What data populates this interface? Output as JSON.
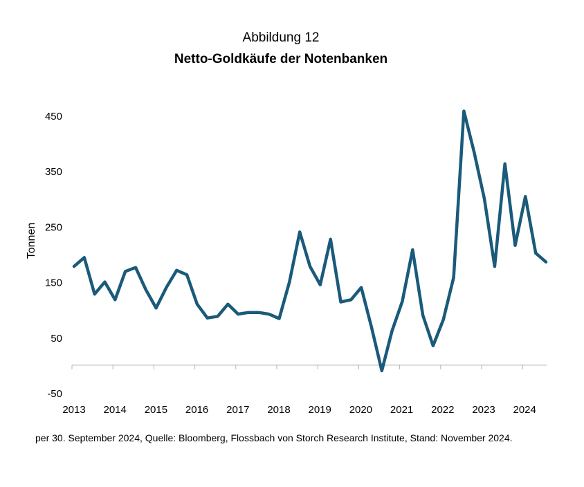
{
  "header": {
    "figure_number": "Abbildung 12",
    "title": "Netto-Goldkäufe der Notenbanken"
  },
  "footnote": "per 30. September 2024, Quelle: Bloomberg, Flossbach von Storch Research Institute, Stand: November 2024.",
  "colors": {
    "line": "#1a5a7a",
    "axis": "#b0b0b0"
  },
  "chart_data": {
    "type": "line",
    "title": "Netto-Goldkäufe der Notenbanken",
    "xlabel": "",
    "ylabel": "Tonnen",
    "ylim": [
      -50,
      450
    ],
    "y_ticks": [
      450,
      350,
      250,
      150,
      50,
      -50
    ],
    "x_ticks": [
      "2013",
      "2014",
      "2015",
      "2016",
      "2017",
      "2018",
      "2019",
      "2020",
      "2021",
      "2022",
      "2023",
      "2024"
    ],
    "grid": false,
    "series": [
      {
        "name": "Netto-Goldkäufe",
        "x": [
          "Q1 2013",
          "Q2 2013",
          "Q3 2013",
          "Q4 2013",
          "Q1 2014",
          "Q2 2014",
          "Q3 2014",
          "Q4 2014",
          "Q1 2015",
          "Q2 2015",
          "Q3 2015",
          "Q4 2015",
          "Q1 2016",
          "Q2 2016",
          "Q3 2016",
          "Q4 2016",
          "Q1 2017",
          "Q2 2017",
          "Q3 2017",
          "Q4 2017",
          "Q1 2018",
          "Q2 2018",
          "Q3 2018",
          "Q4 2018",
          "Q1 2019",
          "Q2 2019",
          "Q3 2019",
          "Q4 2019",
          "Q1 2020",
          "Q2 2020",
          "Q3 2020",
          "Q4 2020",
          "Q1 2021",
          "Q2 2021",
          "Q3 2021",
          "Q4 2021",
          "Q1 2022",
          "Q2 2022",
          "Q3 2022",
          "Q4 2022",
          "Q1 2023",
          "Q2 2023",
          "Q3 2023",
          "Q4 2023",
          "Q1 2024",
          "Q2 2024",
          "Q3 2024"
        ],
        "values": [
          178,
          194,
          128,
          150,
          118,
          169,
          176,
          136,
          103,
          140,
          171,
          163,
          110,
          85,
          88,
          110,
          92,
          95,
          95,
          92,
          84,
          150,
          240,
          178,
          145,
          227,
          114,
          118,
          140,
          68,
          -10,
          62,
          115,
          208,
          90,
          35,
          82,
          158,
          458,
          384,
          300,
          178,
          363,
          216,
          304,
          202,
          186
        ]
      }
    ]
  }
}
